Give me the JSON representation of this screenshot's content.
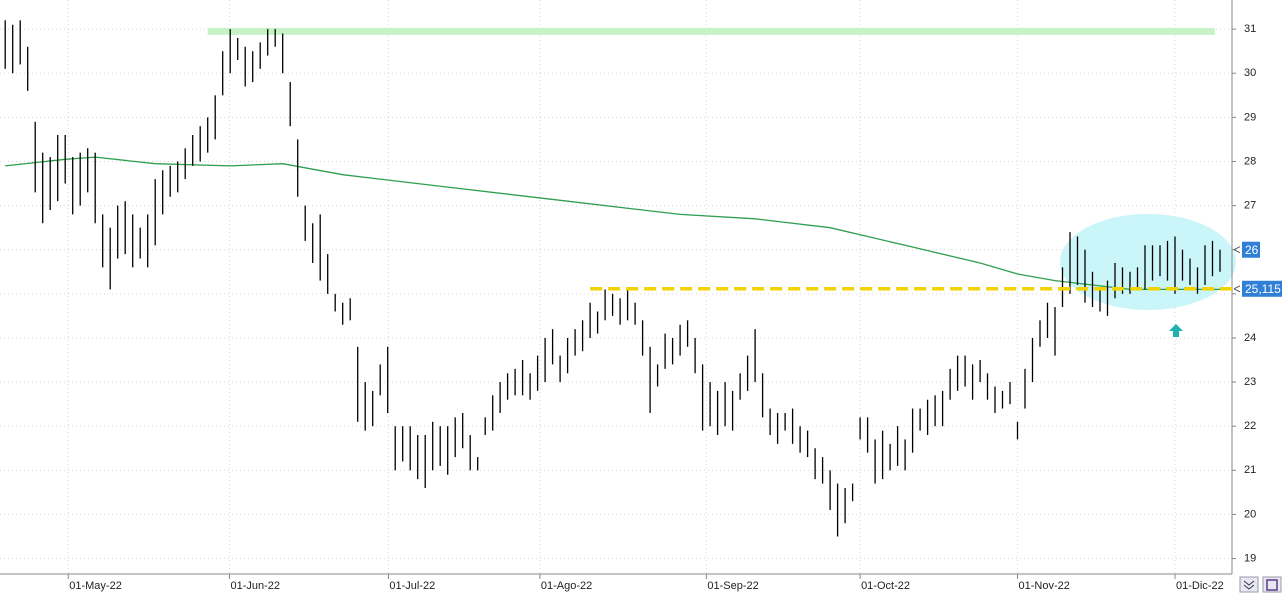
{
  "chart_data": {
    "type": "ohlc",
    "color": "#000000",
    "high": [
      31.2,
      31.1,
      31.2,
      30.6,
      28.9,
      28.2,
      28.1,
      28.6,
      28.6,
      28.1,
      28.2,
      28.3,
      28.2,
      26.8,
      26.5,
      27.0,
      27.1,
      26.8,
      26.5,
      26.8,
      27.6,
      27.8,
      27.9,
      28.0,
      28.3,
      28.6,
      28.8,
      29.0,
      29.5,
      30.5,
      31.0,
      30.8,
      30.6,
      30.5,
      30.7,
      31.0,
      31.0,
      30.9,
      29.8,
      28.5,
      27.0,
      26.6,
      26.8,
      25.9,
      25.0,
      24.8,
      24.9,
      23.8,
      23.0,
      22.8,
      23.4,
      23.8,
      22.0,
      22.0,
      22.0,
      21.8,
      21.8,
      22.1,
      22.0,
      22.0,
      22.2,
      22.3,
      21.8,
      21.3,
      22.2,
      22.7,
      23.0,
      23.2,
      23.3,
      23.5,
      23.2,
      23.6,
      24.0,
      24.2,
      23.6,
      24.0,
      24.2,
      24.4,
      24.8,
      24.6,
      25.1,
      25.0,
      24.9,
      25.1,
      24.8,
      24.4,
      23.8,
      23.4,
      24.1,
      24.0,
      24.3,
      24.4,
      24.0,
      23.4,
      23.0,
      22.8,
      23.0,
      22.8,
      23.2,
      23.6,
      24.2,
      23.2,
      22.4,
      22.3,
      22.3,
      22.4,
      22.0,
      21.9,
      21.5,
      21.3,
      21.0,
      20.7,
      20.6,
      20.7,
      22.2,
      22.2,
      21.7,
      21.9,
      21.6,
      22.0,
      21.7,
      22.4,
      22.4,
      22.6,
      22.7,
      22.8,
      23.3,
      23.6,
      23.6,
      23.4,
      23.5,
      23.2,
      22.9,
      22.8,
      23.0,
      22.1,
      23.3,
      24.0,
      24.4,
      24.8,
      24.7,
      25.6,
      26.4,
      26.3,
      26.0,
      25.5,
      25.1,
      25.3,
      25.7,
      25.6,
      25.5,
      25.6,
      26.1,
      26.1,
      26.1,
      26.2,
      26.3,
      26.0,
      25.8,
      25.6,
      26.1,
      26.2,
      26.0
    ],
    "low": [
      30.1,
      30.0,
      30.2,
      29.6,
      27.3,
      26.6,
      26.9,
      27.1,
      27.5,
      26.8,
      27.0,
      27.3,
      26.6,
      25.6,
      25.1,
      25.8,
      25.9,
      25.6,
      25.8,
      25.6,
      26.1,
      26.8,
      27.2,
      27.3,
      27.6,
      27.9,
      28.0,
      28.2,
      28.5,
      29.5,
      30.0,
      30.3,
      29.7,
      29.8,
      30.1,
      30.4,
      30.6,
      30.0,
      28.8,
      27.2,
      26.2,
      25.7,
      25.3,
      25.0,
      24.6,
      24.3,
      24.4,
      22.1,
      21.9,
      22.0,
      22.7,
      22.3,
      21.0,
      21.2,
      21.0,
      20.8,
      20.6,
      21.0,
      21.1,
      20.9,
      21.3,
      21.5,
      21.0,
      21.0,
      21.8,
      21.9,
      22.3,
      22.6,
      22.7,
      22.7,
      22.6,
      22.8,
      23.0,
      23.4,
      23.0,
      23.2,
      23.6,
      23.7,
      24.0,
      24.1,
      24.4,
      24.5,
      24.3,
      24.4,
      24.3,
      23.6,
      22.3,
      22.9,
      23.3,
      23.4,
      23.6,
      23.8,
      23.2,
      21.9,
      22.0,
      21.8,
      22.0,
      21.9,
      22.6,
      22.8,
      23.0,
      22.2,
      21.8,
      21.6,
      21.9,
      21.6,
      21.4,
      21.3,
      20.8,
      20.7,
      20.1,
      19.5,
      19.8,
      20.3,
      21.7,
      21.4,
      20.7,
      20.8,
      21.0,
      21.1,
      21.0,
      21.4,
      21.9,
      21.8,
      22.0,
      22.0,
      22.6,
      22.8,
      22.9,
      22.6,
      23.0,
      22.6,
      22.3,
      22.4,
      22.5,
      21.7,
      22.4,
      23.0,
      23.8,
      24.0,
      23.6,
      24.7,
      25.0,
      25.2,
      24.8,
      24.7,
      24.6,
      24.5,
      24.9,
      25.0,
      25.0,
      25.1,
      25.1,
      25.3,
      25.4,
      25.3,
      25.0,
      25.3,
      25.2,
      25.0,
      25.2,
      25.4,
      25.5
    ],
    "moving_average": {
      "color": "#2e9e4f",
      "x": [
        0,
        8,
        12,
        20,
        30,
        37,
        45,
        60,
        75,
        90,
        100,
        110,
        120,
        130,
        135,
        140,
        145,
        150,
        156,
        163.6
      ],
      "values": [
        27.9,
        28.05,
        28.1,
        27.95,
        27.9,
        27.95,
        27.7,
        27.4,
        27.1,
        26.8,
        26.7,
        26.5,
        26.1,
        25.7,
        25.45,
        25.3,
        25.2,
        25.1,
        25.1,
        25.1
      ]
    },
    "resistance": {
      "value": 30.95,
      "x": [
        27,
        161.3
      ],
      "color": "#c6f2c6"
    },
    "support": {
      "value": 25.115,
      "x": [
        78,
        163.6
      ],
      "color": "#f2d200",
      "price_label": {
        "value": 25.115,
        "label": "25,115"
      }
    },
    "last_price": 26,
    "xlim": [
      -0.7,
      163.6
    ],
    "xticks": [
      {
        "value": 8.4,
        "label": "01-May-22"
      },
      {
        "value": 29.9,
        "label": "01-Jun-22"
      },
      {
        "value": 51.1,
        "label": "01-Jul-22"
      },
      {
        "value": 71.3,
        "label": "01-Ago-22"
      },
      {
        "value": 93.5,
        "label": "01-Sep-22"
      },
      {
        "value": 114,
        "label": "01-Oct-22"
      },
      {
        "value": 135,
        "label": "01-Nov-22"
      },
      {
        "value": 156,
        "label": "01-Dic-22"
      }
    ],
    "ylim": [
      18.65,
      31.66
    ],
    "yticks": [
      19,
      20,
      21,
      22,
      23,
      24,
      25,
      26,
      27,
      28,
      29,
      30,
      31
    ],
    "grid": true
  }
}
